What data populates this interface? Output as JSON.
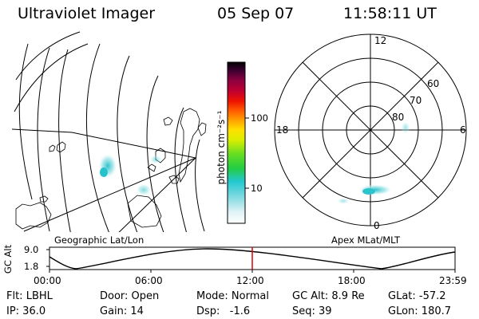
{
  "header": {
    "instrument": "Ultraviolet Imager",
    "date": "05 Sep 07",
    "time": "11:58:11 UT"
  },
  "colorbar": {
    "unit_label": "photon cm⁻²s⁻¹",
    "ticks": [
      "100",
      "10"
    ]
  },
  "panels": {
    "geographic_label": "Geographic Lat/Lon",
    "apex_label": "Apex MLat/MLT"
  },
  "polar": {
    "mlt_labels": {
      "top": "12",
      "left": "18",
      "right": "6",
      "bottom": "0"
    },
    "lat_labels": [
      "60",
      "70",
      "80"
    ]
  },
  "altitude_plot": {
    "ylabel": "GC Alt",
    "y_ticks": [
      "9.0",
      "1.8"
    ],
    "x_ticks": [
      "00:00",
      "06:00",
      "12:00",
      "18:00",
      "23:59"
    ],
    "marker_time": "11:58"
  },
  "footer": {
    "flt": "Flt: LBHL",
    "ip": "IP: 36.0",
    "door": "Door: Open",
    "gain": "Gain: 14",
    "mode": "Mode: Normal",
    "dsp": "Dsp:   -1.6",
    "gc_alt": "GC Alt: 8.9 Re",
    "seq": "Seq: 39",
    "glat": "GLat: -57.2",
    "glon": "GLon: 180.7"
  },
  "colors": {
    "marker": "#e00000",
    "aurora": "#5ad0d6"
  }
}
